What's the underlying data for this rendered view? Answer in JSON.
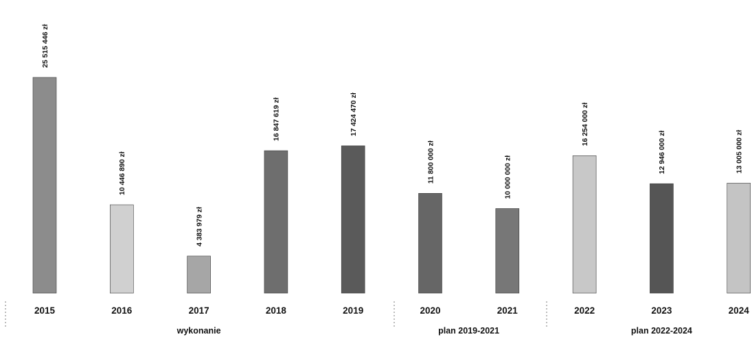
{
  "chart_data": {
    "type": "bar",
    "categories": [
      "2015",
      "2016",
      "2017",
      "2018",
      "2019",
      "2020",
      "2021",
      "2022",
      "2023",
      "2024"
    ],
    "values": [
      25515446,
      10446890,
      4383979,
      16847619,
      17424470,
      11800000,
      10000000,
      16254000,
      12946000,
      13005000
    ],
    "data_labels": [
      "25 515 446 zł",
      "10 446 890 zł",
      "4 383 979 zł",
      "16 847 619 zł",
      "17 424 470 zł",
      "11 800 000 zł",
      "10 000 000 zł",
      "16 254 000 zł",
      "12 946 000 zł",
      "13 005 000 zł"
    ],
    "groups": [
      {
        "label": "wykonanie",
        "categories": [
          "2015",
          "2016",
          "2017",
          "2018",
          "2019"
        ]
      },
      {
        "label": "plan 2019-2021",
        "categories": [
          "2020",
          "2021"
        ]
      },
      {
        "label": "plan 2022-2024",
        "categories": [
          "2022",
          "2023",
          "2024"
        ]
      }
    ],
    "title": "",
    "xlabel": "",
    "ylabel": "",
    "ylim": [
      0,
      25515446
    ],
    "grid": false,
    "bar_colors": [
      "#8c8c8c",
      "#d0d0d0",
      "#a6a6a6",
      "#6e6e6e",
      "#5a5a5a",
      "#666666",
      "#777777",
      "#c8c8c8",
      "#555555",
      "#c4c4c4"
    ]
  }
}
